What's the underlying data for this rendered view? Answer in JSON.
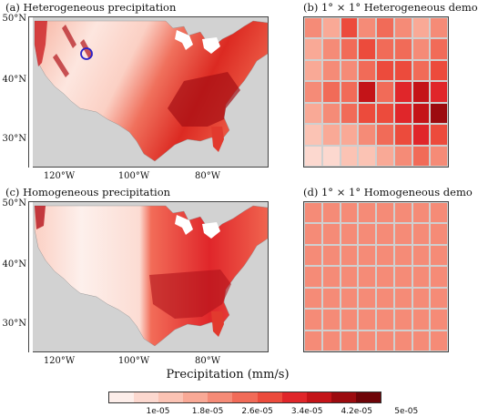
{
  "panels": {
    "a": {
      "title": "(a) Heterogeneous precipitation"
    },
    "b": {
      "title": "(b) 1° × 1° Heterogeneous demo"
    },
    "c": {
      "title": "(c) Homogeneous precipitation"
    },
    "d": {
      "title": "(d) 1° × 1° Homogeneous demo"
    }
  },
  "lat_labels": [
    "50°N",
    "40°N",
    "30°N"
  ],
  "lon_labels": [
    "120°W",
    "100°W",
    "80°W"
  ],
  "colorbar": {
    "title": "Precipitation (mm/s)",
    "tick_labels": [
      "1e-05",
      "1.8e-05",
      "2.6e-05",
      "3.4e-05",
      "4.2e-05",
      "5e-05"
    ],
    "colors": [
      "#fdeeea",
      "#fcd8cf",
      "#fbc3b4",
      "#f9a996",
      "#f58b77",
      "#f16b58",
      "#ec4b3c",
      "#e0262a",
      "#c41418",
      "#9c0b0f",
      "#6e0408"
    ]
  },
  "map_colors": {
    "land_masked": "#d2d2d2",
    "water": "#ffffff",
    "circle_marker": "#2a22c9"
  },
  "heterogeneous_grid": [
    [
      4,
      3,
      6,
      4,
      5,
      4,
      3,
      4
    ],
    [
      3,
      4,
      5,
      6,
      5,
      5,
      4,
      5
    ],
    [
      3,
      4,
      4,
      5,
      6,
      6,
      5,
      6
    ],
    [
      4,
      5,
      5,
      8,
      5,
      7,
      8,
      7
    ],
    [
      3,
      4,
      5,
      6,
      6,
      7,
      8,
      9
    ],
    [
      2,
      3,
      3,
      4,
      5,
      6,
      7,
      6
    ],
    [
      1,
      1,
      2,
      2,
      3,
      4,
      5,
      4
    ]
  ],
  "homogeneous_value_index": 4
}
